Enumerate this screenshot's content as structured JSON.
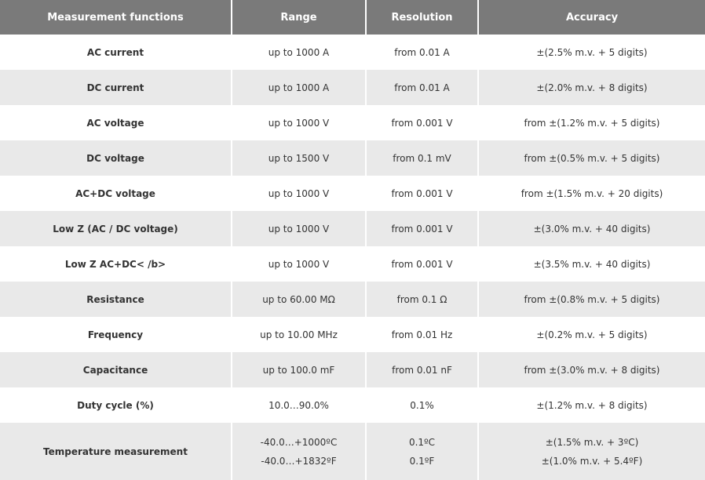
{
  "table": {
    "headers": [
      "Measurement functions",
      "Range",
      "Resolution",
      "Accuracy"
    ],
    "rows": [
      [
        "AC current",
        "up to 1000 A",
        "from 0.01 A",
        "±(2.5% m.v. + 5 digits)"
      ],
      [
        "DC current",
        "up to 1000 A",
        "from 0.01 A",
        "±(2.0% m.v. + 8 digits)"
      ],
      [
        "AC voltage",
        "up to 1000 V",
        "from 0.001 V",
        "from ±(1.2% m.v. + 5 digits)"
      ],
      [
        "DC voltage",
        "up to 1500 V",
        "from 0.1 mV",
        "from ±(0.5% m.v. + 5 digits)"
      ],
      [
        "AC+DC voltage",
        "up to 1000 V",
        "from 0.001 V",
        "from ±(1.5% m.v. + 20 digits)"
      ],
      [
        "Low Z (AC / DC voltage)",
        "up to 1000 V",
        "from 0.001 V",
        "±(3.0% m.v. + 40 digits)"
      ],
      [
        "Low Z AC+DC< /b>",
        "up to 1000 V",
        "from 0.001 V",
        "±(3.5% m.v. + 40 digits)"
      ],
      [
        "Resistance",
        "up to 60.00 MΩ",
        "from 0.1 Ω",
        "from ±(0.8% m.v. + 5 digits)"
      ],
      [
        "Frequency",
        "up to 10.00 MHz",
        "from 0.01 Hz",
        "±(0.2% m.v. + 5 digits)"
      ],
      [
        "Capacitance",
        "up to 100.0 mF",
        "from 0.01 nF",
        "from ±(3.0% m.v. + 8 digits)"
      ],
      [
        "Duty cycle (%)",
        "10.0…90.0%",
        "0.1%",
        "±(1.2% m.v. + 8 digits)"
      ],
      [
        "Temperature measurement",
        [
          "-40.0…+1000ºC",
          "-40.0…+1832ºF"
        ],
        [
          "0.1ºC",
          "0.1ºF"
        ],
        [
          "±(1.5% m.v. + 3ºC)",
          "±(1.0% m.v. + 5.4ºF)"
        ]
      ]
    ]
  }
}
